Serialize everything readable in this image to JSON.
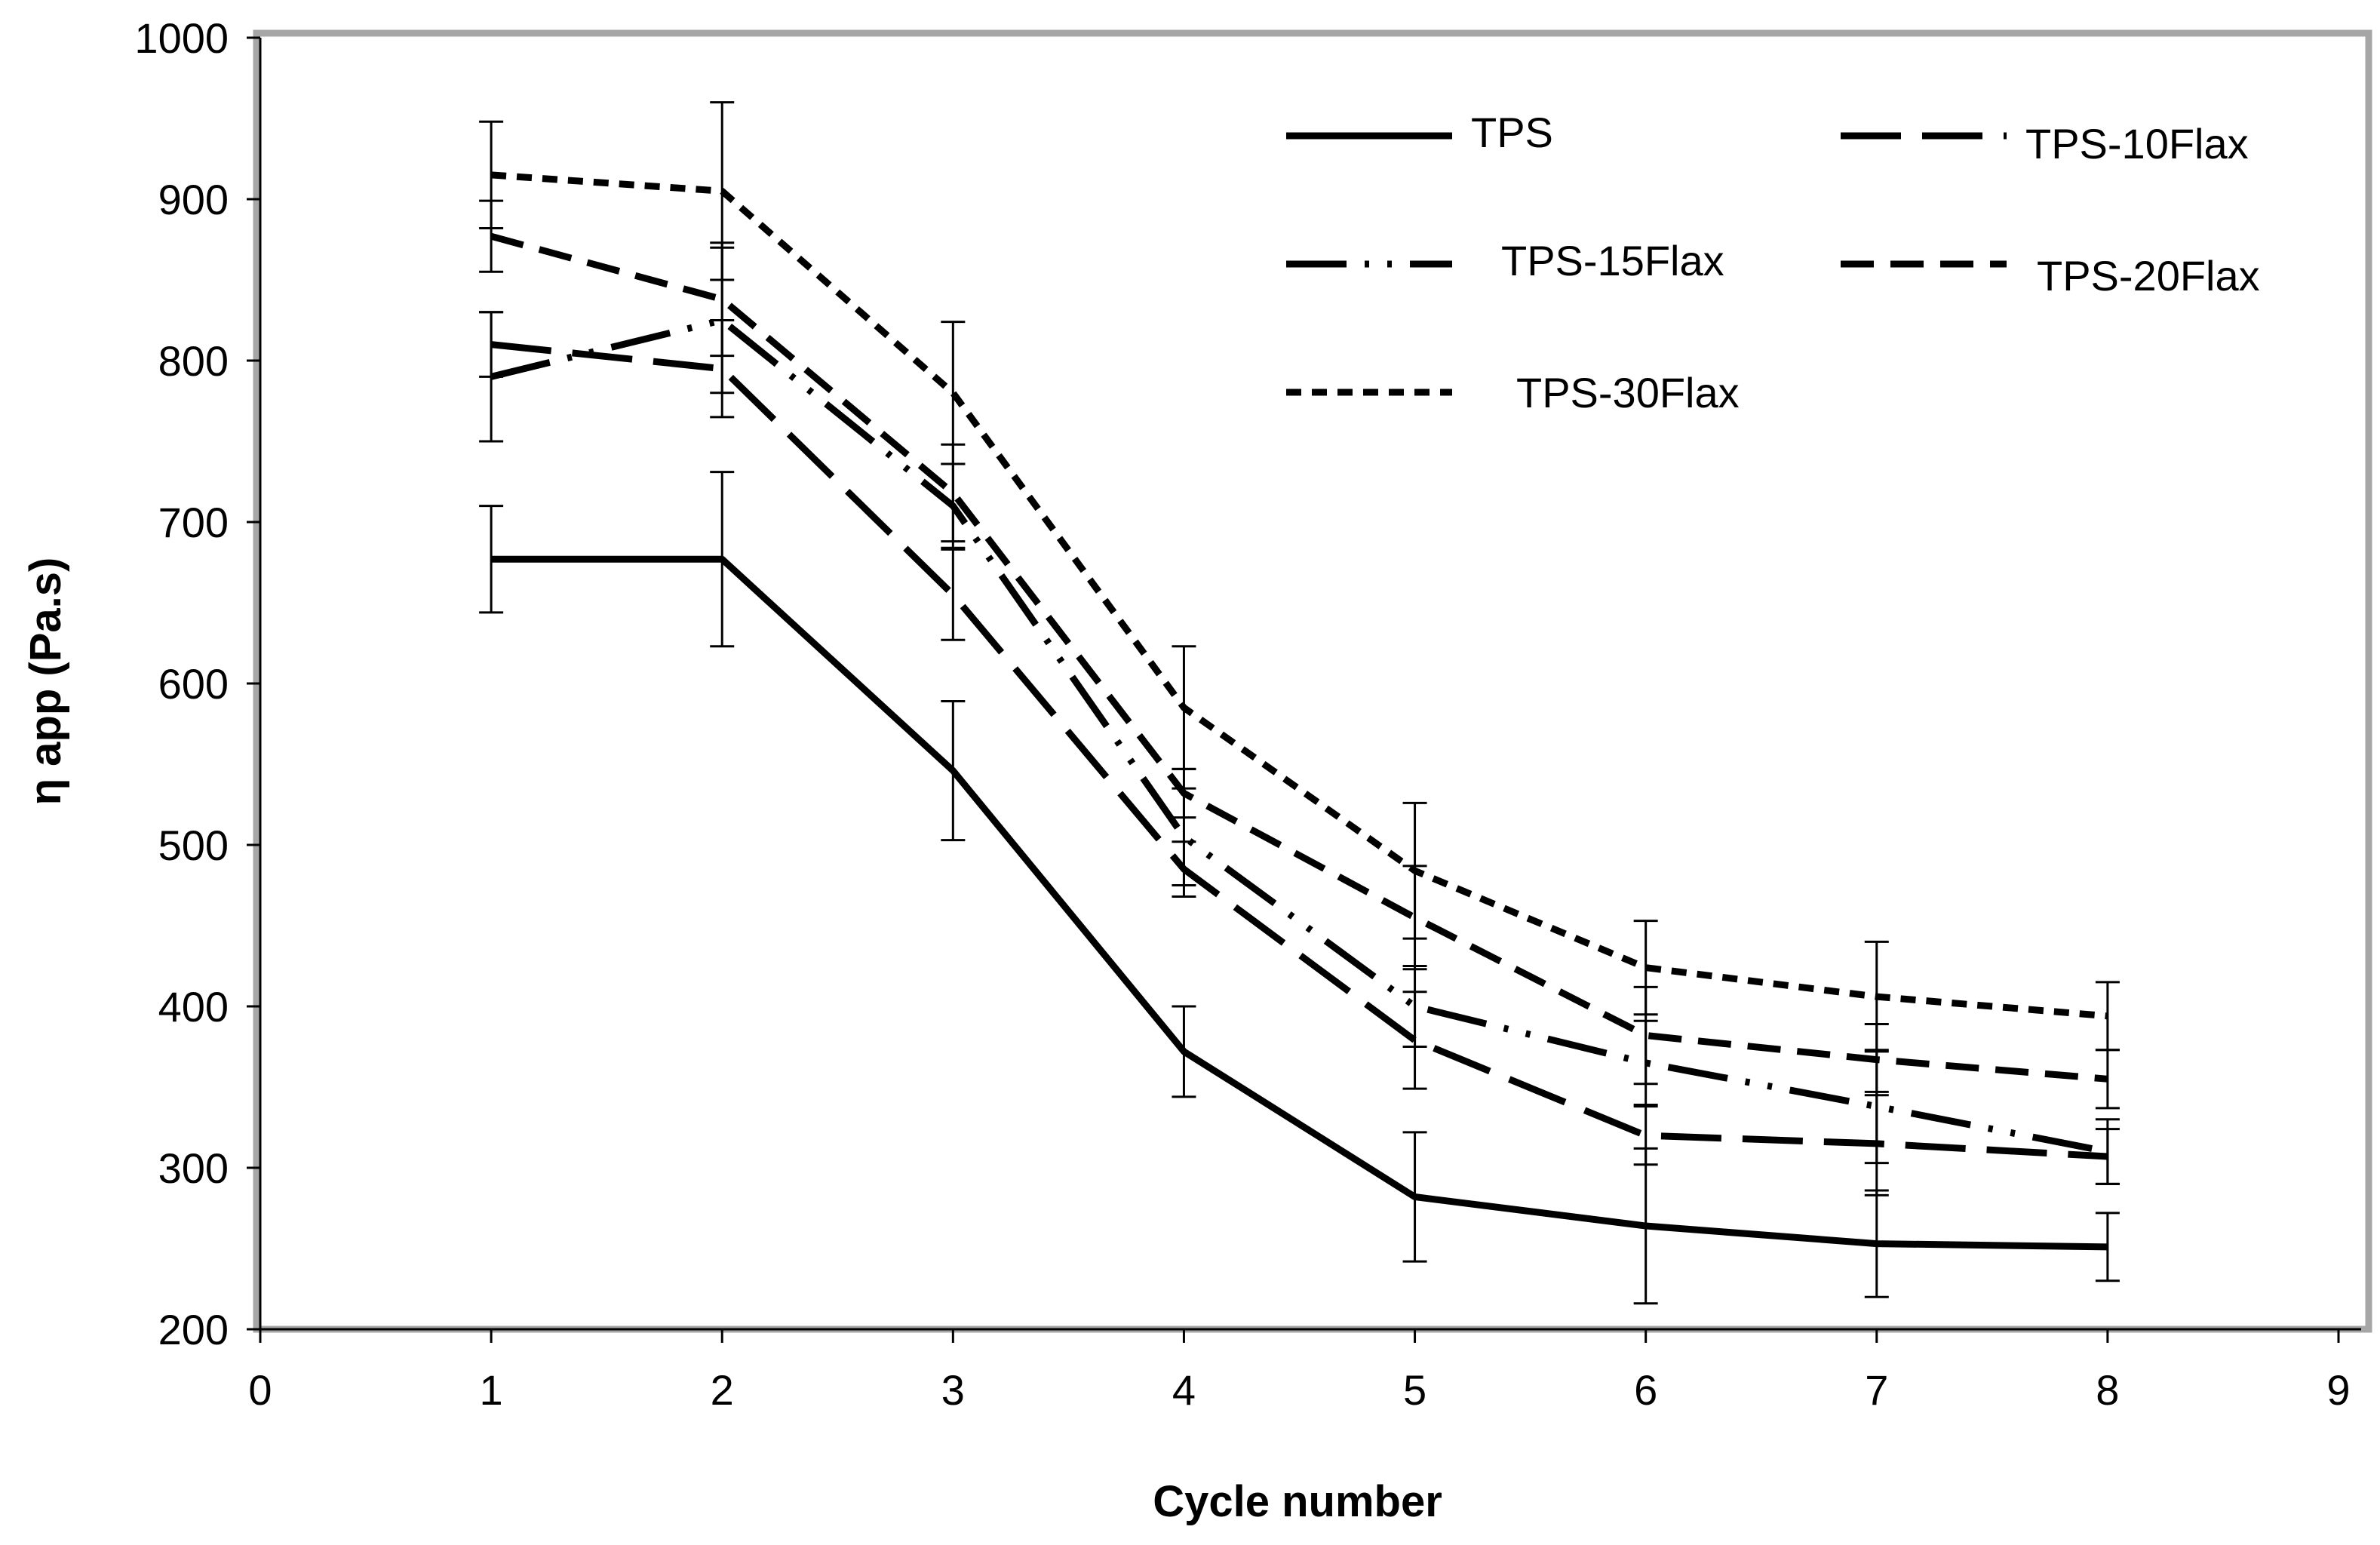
{
  "chart_data": {
    "type": "line",
    "title": "",
    "xlabel": "Cycle number",
    "ylabel": "η app (Pa.s)",
    "xlim": [
      0,
      9
    ],
    "ylim": [
      200,
      1000
    ],
    "xticks": [
      "0",
      "1",
      "2",
      "3",
      "4",
      "5",
      "6",
      "7",
      "8",
      "9"
    ],
    "yticks": [
      "200",
      "300",
      "400",
      "500",
      "600",
      "700",
      "800",
      "900",
      "1000"
    ],
    "grid": false,
    "legend_position": "top-right inside",
    "x": [
      1,
      2,
      3,
      4,
      5,
      6,
      7,
      8
    ],
    "series": [
      {
        "name": "TPS",
        "style": "solid",
        "values": [
          677,
          677,
          546,
          372,
          282,
          264,
          253,
          251
        ],
        "errors": [
          33,
          54,
          43,
          28,
          40,
          48,
          33,
          21
        ]
      },
      {
        "name": "TPS-10Flax",
        "style": "long-dash",
        "values": [
          810,
          795,
          655,
          485,
          379,
          320,
          315,
          307
        ],
        "errors": [
          20,
          30,
          28,
          17,
          30,
          18,
          32,
          17
        ]
      },
      {
        "name": "TPS-15Flax",
        "style": "dash-dot-dot",
        "values": [
          790,
          825,
          710,
          505,
          400,
          365,
          338,
          310
        ],
        "errors": [
          40,
          45,
          26,
          30,
          25,
          26,
          35,
          20
        ]
      },
      {
        "name": "TPS-20Flax",
        "style": "dash",
        "values": [
          877,
          838,
          718,
          532,
          455,
          382,
          367,
          355
        ],
        "errors": [
          22,
          35,
          30,
          15,
          32,
          30,
          22,
          18
        ]
      },
      {
        "name": "TPS-30Flax",
        "style": "short-dash",
        "values": [
          915,
          905,
          780,
          585,
          484,
          424,
          406,
          394
        ],
        "errors": [
          33,
          55,
          44,
          38,
          42,
          29,
          34,
          21
        ]
      }
    ]
  }
}
